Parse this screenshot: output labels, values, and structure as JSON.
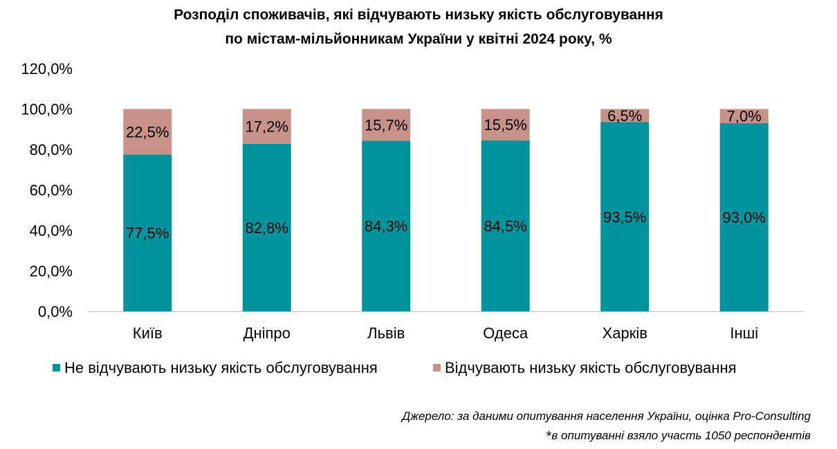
{
  "chart_data": {
    "type": "bar",
    "stacked": true,
    "title": [
      "Розподіл споживачів, які відчувають низьку якість обслуговування",
      "по містам-мільйонникам України у квітні 2024 року, %"
    ],
    "categories": [
      "Київ",
      "Дніпро",
      "Львів",
      "Одеса",
      "Харків",
      "Інші"
    ],
    "series": [
      {
        "name": "Не відчувають низьку якість обслуговування",
        "values": [
          77.5,
          82.8,
          84.3,
          84.5,
          93.5,
          93.0
        ],
        "labels": [
          "77,5%",
          "82,8%",
          "84,3%",
          "84,5%",
          "93,5%",
          "93,0%"
        ],
        "color": "#00959E"
      },
      {
        "name": "Відчувають низьку якість обслуговування",
        "values": [
          22.5,
          17.2,
          15.7,
          15.5,
          6.5,
          7.0
        ],
        "labels": [
          "22,5%",
          "17,2%",
          "15,7%",
          "15,5%",
          "6,5%",
          "7,0%"
        ],
        "color": "#C6928A"
      }
    ],
    "ylim": [
      0,
      120
    ],
    "yticks": [
      0,
      20,
      40,
      60,
      80,
      100,
      120
    ],
    "ytick_labels": [
      "0,0%",
      "20,0%",
      "40,0%",
      "60,0%",
      "80,0%",
      "100,0%",
      "120,0%"
    ],
    "grid": false,
    "legend_position": "bottom",
    "axis_color": "#BFBFBF"
  },
  "footer": {
    "source": "Джерело: за даними опитування населення України, оцінка Pro-Consulting",
    "note_star": "*",
    "note": "в опитуванні взяло участь 1050 респондентів"
  }
}
